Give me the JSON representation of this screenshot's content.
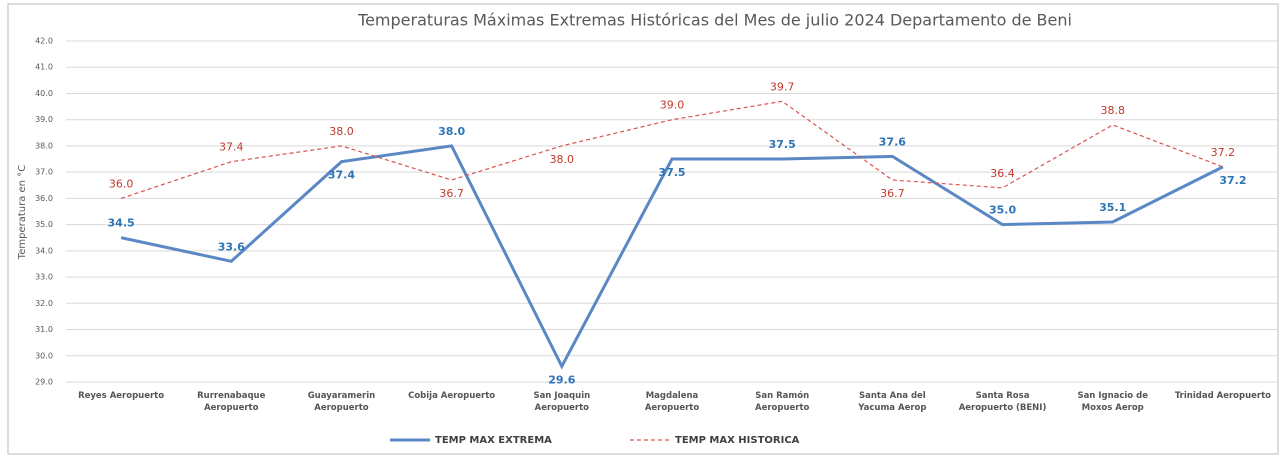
{
  "chart_data": {
    "type": "line",
    "title": "Temperaturas Máximas Extremas Históricas del Mes de julio 2024 Departamento de Beni",
    "ylabel": "Temperatura en °C",
    "categories": [
      "Reyes Aeropuerto",
      "Rurrenabaque Aeropuerto",
      "Guayaramerin Aeropuerto",
      "Cobija Aeropuerto",
      "San Joaquin Aeropuerto",
      "Magdalena Aeropuerto",
      "San Ramón Aeropuerto",
      "Santa Ana del Yacuma Aerop",
      "Santa Rosa Aeropuerto (BENI)",
      "San Ignacio de Moxos Aerop",
      "Trinidad Aeropuerto"
    ],
    "series": [
      {
        "name": "TEMP MAX EXTREMA",
        "color": "#5b87c5",
        "dash": false,
        "values": [
          34.5,
          33.6,
          37.4,
          38.0,
          29.6,
          37.5,
          37.5,
          37.6,
          35.0,
          35.1,
          37.2
        ],
        "value_labels": [
          "34.5",
          "33.6",
          "37.4",
          "38.0",
          "29.6",
          "37.5",
          "37.5",
          "37.6",
          "35.0",
          "35.1",
          "37.2"
        ],
        "label_color": "#2e75b6"
      },
      {
        "name": "TEMP MAX HISTORICA",
        "color": "#d9534f",
        "dash": true,
        "values": [
          36.0,
          37.4,
          38.0,
          36.7,
          38.0,
          39.0,
          39.7,
          36.7,
          36.4,
          38.8,
          37.2
        ],
        "value_labels": [
          "36.0",
          "37.4",
          "38.0",
          "36.7",
          "38.0",
          "39.0",
          "39.7",
          "36.7",
          "36.4",
          "38.8",
          "37.2"
        ],
        "label_color": "#c0392b"
      }
    ],
    "ylim": [
      29,
      42
    ],
    "yticks": [
      {
        "value": 29,
        "label": "29.0"
      },
      {
        "value": 30,
        "label": "30.0"
      },
      {
        "value": 31,
        "label": "31.0"
      },
      {
        "value": 32,
        "label": "32.0"
      },
      {
        "value": 33,
        "label": "33.0"
      },
      {
        "value": 34,
        "label": "34.0"
      },
      {
        "value": 35,
        "label": "35.0"
      },
      {
        "value": 36,
        "label": "36.0"
      },
      {
        "value": 37,
        "label": "37.0"
      },
      {
        "value": 38,
        "label": "38.0"
      },
      {
        "value": 39,
        "label": "39.0"
      },
      {
        "value": 40,
        "label": "40.0"
      },
      {
        "value": 41,
        "label": "41.0"
      },
      {
        "value": 42,
        "label": "42.0"
      }
    ],
    "grid": true
  }
}
